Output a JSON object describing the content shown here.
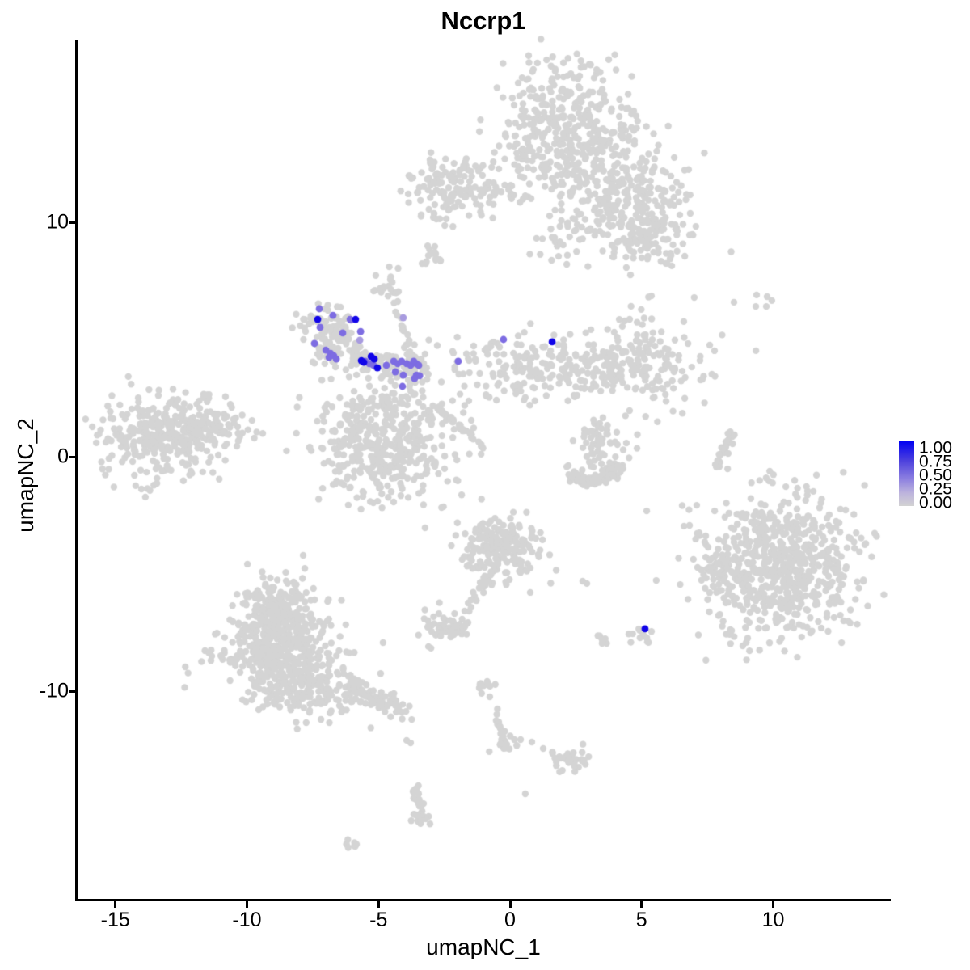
{
  "title": "Nccrp1",
  "axes": {
    "x_label": "umapNC_1",
    "y_label": "umapNC_2",
    "x_ticks": [
      -15,
      -10,
      -5,
      0,
      5,
      10
    ],
    "y_ticks": [
      10,
      0,
      -10
    ],
    "x_range": [
      -16.5,
      14.5
    ],
    "y_range": [
      -18.9,
      17.8
    ]
  },
  "legend": {
    "labels": [
      "1.00",
      "0.75",
      "0.50",
      "0.25",
      "0.00"
    ],
    "values": [
      1.0,
      0.75,
      0.5,
      0.25,
      0.0
    ]
  },
  "chart_data": {
    "type": "scatter",
    "title": "Nccrp1",
    "xlabel": "umapNC_1",
    "ylabel": "umapNC_2",
    "legend_title_values": [
      1.0,
      0.75,
      0.5,
      0.25,
      0.0
    ],
    "base_color": "#d4d4d4",
    "level_colors": {
      "high": "#1104e8",
      "mid": "#7d6ce2",
      "low": "#a89bdf"
    },
    "gray_clusters": [
      {
        "type": "gauss",
        "x": 1.97,
        "y": 13.97,
        "sx": 1.45,
        "sy": 1.42,
        "n": 420
      },
      {
        "type": "gauss",
        "x": 4.27,
        "y": 11.38,
        "sx": 1.15,
        "sy": 0.95,
        "n": 200
      },
      {
        "type": "gauss",
        "x": 5.35,
        "y": 9.48,
        "sx": 0.9,
        "sy": 0.85,
        "n": 120
      },
      {
        "type": "gauss",
        "x": 2.89,
        "y": 9.48,
        "sx": 0.9,
        "sy": 0.95,
        "n": 55
      },
      {
        "type": "gauss",
        "x": -2.24,
        "y": 11.48,
        "sx": 0.8,
        "sy": 0.68,
        "n": 130
      },
      {
        "type": "gauss",
        "x": -2.89,
        "y": 8.52,
        "sx": 0.25,
        "sy": 0.24,
        "n": 14
      },
      {
        "type": "gauss",
        "x": -4.58,
        "y": 7.34,
        "sx": 0.26,
        "sy": 0.33,
        "n": 18
      },
      {
        "type": "gauss",
        "x": -13.09,
        "y": 0.86,
        "sx": 1.25,
        "sy": 0.9,
        "n": 340
      },
      {
        "type": "gauss",
        "x": -11.34,
        "y": 1.28,
        "sx": 0.55,
        "sy": 0.33,
        "n": 60
      },
      {
        "type": "gauss",
        "x": -7.03,
        "y": 5.62,
        "sx": 0.5,
        "sy": 0.45,
        "n": 65
      },
      {
        "type": "gauss",
        "x": -6.64,
        "y": 4.66,
        "sx": 0.44,
        "sy": 0.4,
        "n": 50
      },
      {
        "type": "gauss",
        "x": -4.79,
        "y": 0.69,
        "sx": 1.3,
        "sy": 1.25,
        "n": 460
      },
      {
        "type": "gauss",
        "x": 0.58,
        "y": 3.79,
        "sx": 1.7,
        "sy": 0.7,
        "n": 170
      },
      {
        "type": "gauss",
        "x": 4.58,
        "y": 3.97,
        "sx": 1.4,
        "sy": 0.95,
        "n": 210
      },
      {
        "type": "gauss",
        "x": 3.35,
        "y": 0.17,
        "sx": 0.75,
        "sy": 0.55,
        "n": 48
      },
      {
        "type": "gauss",
        "x": 3.2,
        "y": 1.14,
        "sx": 0.3,
        "sy": 0.28,
        "n": 22
      },
      {
        "type": "gauss",
        "x": 10.26,
        "y": -4.66,
        "sx": 1.5,
        "sy": 1.5,
        "n": 680
      },
      {
        "type": "gauss",
        "x": 8.05,
        "y": -4.86,
        "sx": 0.37,
        "sy": 0.45,
        "n": 55
      },
      {
        "type": "gauss",
        "x": -0.28,
        "y": -3.97,
        "sx": 0.8,
        "sy": 0.7,
        "n": 200
      },
      {
        "type": "gauss",
        "x": -2.49,
        "y": -7.24,
        "sx": 0.43,
        "sy": 0.28,
        "n": 50
      },
      {
        "type": "gauss",
        "x": 2.21,
        "y": -12.93,
        "sx": 0.4,
        "sy": 0.28,
        "n": 34
      },
      {
        "type": "gauss",
        "x": -0.28,
        "y": -12.17,
        "sx": 0.22,
        "sy": 0.24,
        "n": 16
      },
      {
        "type": "gauss",
        "x": -0.89,
        "y": -9.66,
        "sx": 0.18,
        "sy": 0.2,
        "n": 10
      },
      {
        "type": "gauss",
        "x": -8.94,
        "y": -6.21,
        "sx": 0.75,
        "sy": 0.6,
        "n": 160
      },
      {
        "type": "gauss",
        "x": -8.79,
        "y": -8.1,
        "sx": 1.15,
        "sy": 0.8,
        "n": 340
      },
      {
        "type": "gauss",
        "x": -7.86,
        "y": -9.83,
        "sx": 1.25,
        "sy": 0.6,
        "n": 230
      },
      {
        "type": "gauss",
        "x": -6.05,
        "y": -16.48,
        "sx": 0.16,
        "sy": 0.12,
        "n": 7
      },
      {
        "type": "gauss",
        "x": -3.42,
        "y": -15.28,
        "sx": 0.18,
        "sy": 0.22,
        "n": 14
      },
      {
        "type": "gauss",
        "x": 5.04,
        "y": -7.66,
        "sx": 0.2,
        "sy": 0.24,
        "n": 14
      },
      {
        "type": "gauss",
        "x": 3.44,
        "y": -7.83,
        "sx": 0.14,
        "sy": 0.14,
        "n": 7
      },
      {
        "type": "line",
        "x1": -1.11,
        "y1": 11.31,
        "x2": 0.74,
        "y2": 11.14,
        "jx": 0.1,
        "jy": 0.12,
        "n": 16
      },
      {
        "type": "line",
        "x1": -4.42,
        "y1": 6.72,
        "x2": -4.02,
        "y2": 5.28,
        "jx": 0.08,
        "jy": 0.1,
        "n": 8
      },
      {
        "type": "line",
        "x1": -6.02,
        "y1": 4.03,
        "x2": -3.2,
        "y2": 3.69,
        "jx": 0.15,
        "jy": 0.3,
        "n": 100
      },
      {
        "type": "line",
        "x1": -3.9,
        "y1": 5.07,
        "x2": -3.53,
        "y2": 3.34,
        "jx": 0.12,
        "jy": 0.12,
        "n": 22
      },
      {
        "type": "line",
        "x1": -2.86,
        "y1": 2.17,
        "x2": -1.01,
        "y2": 0.45,
        "jx": 0.05,
        "jy": 0.05,
        "n": 42
      },
      {
        "type": "line",
        "x1": 2.12,
        "y1": -0.86,
        "x2": 3.2,
        "y2": -1.07,
        "jx": 0.12,
        "jy": 0.15,
        "n": 35
      },
      {
        "type": "line",
        "x1": 3.2,
        "y1": -1.07,
        "x2": 4.33,
        "y2": -0.52,
        "jx": 0.12,
        "jy": 0.15,
        "n": 32
      },
      {
        "type": "line",
        "x1": 8.42,
        "y1": 0.97,
        "x2": 7.8,
        "y2": -0.52,
        "jx": 0.06,
        "jy": 0.08,
        "n": 30
      },
      {
        "type": "line",
        "x1": -6.17,
        "y1": -9.83,
        "x2": -3.78,
        "y2": -10.86,
        "jx": 0.18,
        "jy": 0.22,
        "n": 75
      },
      {
        "type": "line",
        "x1": -0.74,
        "y1": -5.07,
        "x2": -1.66,
        "y2": -6.55,
        "jx": 0.1,
        "jy": 0.1,
        "n": 24
      },
      {
        "type": "line",
        "x1": -0.58,
        "y1": -10.69,
        "x2": -0.28,
        "y2": -11.83,
        "jx": 0.07,
        "jy": 0.07,
        "n": 10
      },
      {
        "type": "line",
        "x1": -11.8,
        "y1": 2.34,
        "x2": -11.43,
        "y2": 2.72,
        "jx": 0.06,
        "jy": 0.06,
        "n": 8
      },
      {
        "type": "line",
        "x1": -3.66,
        "y1": -13.97,
        "x2": -3.32,
        "y2": -15.52,
        "jx": 0.1,
        "jy": 0.12,
        "n": 26
      }
    ],
    "gray_singles": [
      [
        -3.87,
        11.21
      ],
      [
        -3.5,
        11.28
      ],
      [
        -2.89,
        10.38
      ],
      [
        -2.8,
        10.14
      ],
      [
        -2.86,
        8.97
      ],
      [
        -4.27,
        6.62
      ],
      [
        -4.09,
        5.41
      ],
      [
        7.0,
        6.79
      ],
      [
        8.51,
        6.59
      ],
      [
        9.37,
        6.9
      ],
      [
        9.77,
        6.83
      ],
      [
        9.95,
        6.66
      ],
      [
        9.74,
        6.41
      ],
      [
        9.34,
        6.41
      ],
      [
        7.59,
        4.76
      ],
      [
        7.77,
        4.52
      ],
      [
        8.2,
        0.41
      ],
      [
        8.29,
        0.14
      ],
      [
        8.27,
        -0.52
      ],
      [
        2.76,
        -5.31
      ],
      [
        2.92,
        -5.41
      ],
      [
        0.4,
        -12.07
      ],
      [
        0.83,
        -12.17
      ],
      [
        1.26,
        -12.45
      ],
      [
        0.58,
        -14.38
      ],
      [
        -3.93,
        -12.1
      ],
      [
        -3.78,
        -12.21
      ],
      [
        -0.77,
        -10.24
      ],
      [
        -14.01,
        -1.38
      ],
      [
        -13.86,
        -1.72
      ],
      [
        -15.36,
        0.62
      ],
      [
        -3.1,
        -8.1
      ]
    ],
    "expressing_cells": [
      [
        -7.25,
        6.31,
        "mid"
      ],
      [
        -6.73,
        6.03,
        "mid"
      ],
      [
        -6.05,
        5.83,
        "mid"
      ],
      [
        -7.22,
        5.52,
        "mid"
      ],
      [
        -7.43,
        4.83,
        "mid"
      ],
      [
        -7.0,
        4.55,
        "mid"
      ],
      [
        -6.82,
        4.41,
        "mid"
      ],
      [
        -6.88,
        4.24,
        "mid"
      ],
      [
        -6.7,
        4.31,
        "mid"
      ],
      [
        -6.6,
        4.17,
        "mid"
      ],
      [
        -6.36,
        5.28,
        "mid"
      ],
      [
        -5.68,
        5.34,
        "mid"
      ],
      [
        -5.5,
        4.07,
        "mid"
      ],
      [
        -5.35,
        3.97,
        "mid"
      ],
      [
        -5.19,
        3.9,
        "mid"
      ],
      [
        -4.7,
        3.9,
        "mid"
      ],
      [
        -4.42,
        4.07,
        "mid"
      ],
      [
        -4.27,
        3.97,
        "mid"
      ],
      [
        -4.12,
        4.07,
        "mid"
      ],
      [
        -3.93,
        3.97,
        "mid"
      ],
      [
        -3.78,
        3.9,
        "mid"
      ],
      [
        -3.66,
        4.07,
        "mid"
      ],
      [
        -3.56,
        3.97,
        "mid"
      ],
      [
        -3.47,
        3.9,
        "mid"
      ],
      [
        -3.56,
        3.48,
        "mid"
      ],
      [
        -3.44,
        3.45,
        "mid"
      ],
      [
        -4.36,
        3.62,
        "mid"
      ],
      [
        -4.06,
        3.48,
        "mid"
      ],
      [
        -3.63,
        3.34,
        "mid"
      ],
      [
        -4.09,
        3.0,
        "mid"
      ],
      [
        -6.08,
        5.86,
        "mid"
      ],
      [
        -1.97,
        4.07,
        "mid"
      ],
      [
        -0.25,
        5.0,
        "mid"
      ],
      [
        -5.71,
        4.97,
        "low"
      ],
      [
        -4.06,
        5.93,
        "low"
      ],
      [
        -7.31,
        5.86,
        "high"
      ],
      [
        -5.87,
        5.86,
        "high"
      ],
      [
        -5.28,
        4.28,
        "high"
      ],
      [
        -5.16,
        4.17,
        "high"
      ],
      [
        -5.65,
        4.1,
        "high"
      ],
      [
        -5.56,
        4.03,
        "high"
      ],
      [
        -5.04,
        3.79,
        "high"
      ],
      [
        1.6,
        4.9,
        "high"
      ],
      [
        5.13,
        -7.34,
        "high"
      ]
    ]
  }
}
